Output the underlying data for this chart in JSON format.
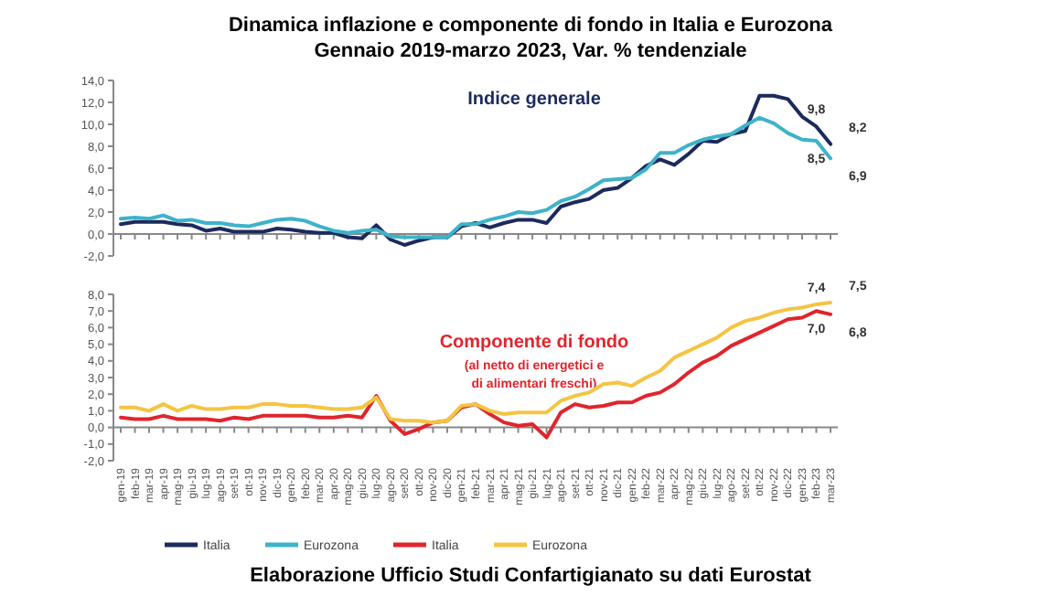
{
  "chart_data": [
    {
      "type": "line",
      "title": "Dinamica inflazione e componente di fondo in Italia e Eurozona",
      "subtitle": "Gennaio 2019-marzo 2023, Var. % tendenziale",
      "annotations": [
        "Indice generale"
      ],
      "categories": [
        null,
        null,
        null,
        null,
        null,
        null,
        null,
        null,
        null,
        null,
        null,
        null,
        null,
        null,
        null,
        null,
        null,
        null,
        null,
        null,
        null,
        null,
        null,
        null,
        null,
        null,
        null,
        null,
        null,
        null,
        null,
        null,
        null,
        null,
        null,
        null,
        null,
        null,
        null,
        null,
        null,
        null,
        null,
        null,
        null,
        null,
        null,
        null,
        null,
        null,
        null
      ],
      "ylim": [
        -2,
        14
      ],
      "yticks": [
        {
          "value": -2,
          "label": "-2,0"
        },
        {
          "value": 0,
          "label": "0,0"
        },
        {
          "value": 2,
          "label": "2,0"
        },
        {
          "value": 4,
          "label": "4,0"
        },
        {
          "value": 6,
          "label": "6,0"
        },
        {
          "value": 8,
          "label": "8,0"
        },
        {
          "value": 10,
          "label": "10,0"
        },
        {
          "value": 12,
          "label": "12,0"
        },
        {
          "value": 14,
          "label": "14,0"
        }
      ],
      "legend": "bottom",
      "marker": "none",
      "line_style": "solid",
      "series": [
        {
          "name": "Italia",
          "color": "#1c2a5c",
          "values": [
            0.9,
            1.1,
            1.1,
            1.1,
            0.9,
            0.8,
            0.3,
            0.5,
            0.2,
            0.2,
            0.2,
            0.5,
            0.4,
            0.2,
            0.1,
            0.1,
            -0.3,
            -0.4,
            0.8,
            -0.5,
            -1.0,
            -0.6,
            -0.3,
            -0.3,
            0.7,
            1.0,
            0.6,
            1.0,
            1.3,
            1.3,
            1.0,
            2.5,
            2.9,
            3.2,
            4.0,
            4.2,
            5.1,
            6.2,
            6.8,
            6.3,
            7.3,
            8.5,
            8.4,
            9.1,
            9.4,
            12.6,
            12.6,
            12.3,
            10.7,
            9.8,
            8.2
          ],
          "value_labels": [
            null,
            null,
            null,
            null,
            null,
            null,
            null,
            null,
            null,
            null,
            null,
            null,
            null,
            null,
            null,
            null,
            null,
            null,
            null,
            null,
            null,
            null,
            null,
            null,
            null,
            null,
            null,
            null,
            null,
            null,
            null,
            null,
            null,
            null,
            null,
            null,
            null,
            null,
            null,
            null,
            null,
            null,
            null,
            null,
            null,
            null,
            null,
            null,
            null,
            "9,8",
            "8,2"
          ]
        },
        {
          "name": "Eurozona",
          "color": "#3db3c9",
          "values": [
            1.4,
            1.5,
            1.4,
            1.7,
            1.2,
            1.3,
            1.0,
            1.0,
            0.8,
            0.7,
            1.0,
            1.3,
            1.4,
            1.2,
            0.7,
            0.3,
            0.1,
            0.3,
            0.4,
            -0.2,
            -0.3,
            -0.3,
            -0.3,
            -0.3,
            0.9,
            0.9,
            1.3,
            1.6,
            2.0,
            1.9,
            2.2,
            3.0,
            3.4,
            4.1,
            4.9,
            5.0,
            5.1,
            5.9,
            7.4,
            7.4,
            8.1,
            8.6,
            8.9,
            9.1,
            9.9,
            10.6,
            10.1,
            9.2,
            8.6,
            8.5,
            6.9
          ],
          "value_labels": [
            null,
            null,
            null,
            null,
            null,
            null,
            null,
            null,
            null,
            null,
            null,
            null,
            null,
            null,
            null,
            null,
            null,
            null,
            null,
            null,
            null,
            null,
            null,
            null,
            null,
            null,
            null,
            null,
            null,
            null,
            null,
            null,
            null,
            null,
            null,
            null,
            null,
            null,
            null,
            null,
            null,
            null,
            null,
            null,
            null,
            null,
            null,
            null,
            null,
            "8,5",
            "6,9"
          ]
        }
      ]
    },
    {
      "type": "line",
      "title": "Componente di fondo",
      "subtitle": "(al netto di energetici e di alimentari freschi)",
      "annotations": [
        "Elaborazione Ufficio Studi Confartigianato su dati Eurostat"
      ],
      "categories": [
        "gen-19",
        "feb-19",
        "mar-19",
        "apr-19",
        "mag-19",
        "giu-19",
        "lug-19",
        "ago-19",
        "set-19",
        "ott-19",
        "nov-19",
        "dic-19",
        "gen-20",
        "feb-20",
        "mar-20",
        "apr-20",
        "mag-20",
        "giu-20",
        "lug-20",
        "ago-20",
        "set-20",
        "ott-20",
        "nov-20",
        "dic-20",
        "gen-21",
        "feb-21",
        "mar-21",
        "apr-21",
        "mag-21",
        "giu-21",
        "lug-21",
        "ago-21",
        "set-21",
        "ott-21",
        "nov-21",
        "dic-21",
        "gen-22",
        "feb-22",
        "mar-22",
        "apr-22",
        "mag-22",
        "giu-22",
        "lug-22",
        "ago-22",
        "set-22",
        "ott-22",
        "nov-22",
        "dic-22",
        "gen-23",
        "feb-23",
        "mar-23"
      ],
      "ylim": [
        -2,
        8
      ],
      "yticks": [
        {
          "value": -2,
          "label": "-2,0"
        },
        {
          "value": -1,
          "label": "-1,0"
        },
        {
          "value": 0,
          "label": "0,0"
        },
        {
          "value": 1,
          "label": "1,0"
        },
        {
          "value": 2,
          "label": "2,0"
        },
        {
          "value": 3,
          "label": "3,0"
        },
        {
          "value": 4,
          "label": "4,0"
        },
        {
          "value": 5,
          "label": "5,0"
        },
        {
          "value": 6,
          "label": "6,0"
        },
        {
          "value": 7,
          "label": "7,0"
        },
        {
          "value": 8,
          "label": "8,0"
        }
      ],
      "legend": "bottom",
      "marker": "none",
      "line_style": "solid",
      "series": [
        {
          "name": "Italia",
          "color": "#e0252c",
          "values": [
            0.6,
            0.5,
            0.5,
            0.7,
            0.5,
            0.5,
            0.5,
            0.4,
            0.6,
            0.5,
            0.7,
            0.7,
            0.7,
            0.7,
            0.6,
            0.6,
            0.7,
            0.6,
            1.9,
            0.4,
            -0.4,
            -0.1,
            0.3,
            0.4,
            1.2,
            1.4,
            0.8,
            0.3,
            0.1,
            0.2,
            -0.6,
            0.9,
            1.4,
            1.2,
            1.3,
            1.5,
            1.5,
            1.9,
            2.1,
            2.6,
            3.3,
            3.9,
            4.3,
            4.9,
            5.3,
            5.7,
            6.1,
            6.5,
            6.6,
            7.0,
            6.8
          ],
          "value_labels": [
            null,
            null,
            null,
            null,
            null,
            null,
            null,
            null,
            null,
            null,
            null,
            null,
            null,
            null,
            null,
            null,
            null,
            null,
            null,
            null,
            null,
            null,
            null,
            null,
            null,
            null,
            null,
            null,
            null,
            null,
            null,
            null,
            null,
            null,
            null,
            null,
            null,
            null,
            null,
            null,
            null,
            null,
            null,
            null,
            null,
            null,
            null,
            null,
            null,
            "7,0",
            "6,8"
          ]
        },
        {
          "name": "Eurozona",
          "color": "#f4c443",
          "values": [
            1.2,
            1.2,
            1.0,
            1.4,
            1.0,
            1.3,
            1.1,
            1.1,
            1.2,
            1.2,
            1.4,
            1.4,
            1.3,
            1.3,
            1.2,
            1.1,
            1.1,
            1.2,
            1.8,
            0.5,
            0.4,
            0.4,
            0.3,
            0.4,
            1.3,
            1.4,
            1.0,
            0.8,
            0.9,
            0.9,
            0.9,
            1.6,
            1.9,
            2.1,
            2.6,
            2.7,
            2.5,
            3.0,
            3.4,
            4.2,
            4.6,
            5.0,
            5.4,
            6.0,
            6.4,
            6.6,
            6.9,
            7.1,
            7.2,
            7.4,
            7.5
          ],
          "value_labels": [
            null,
            null,
            null,
            null,
            null,
            null,
            null,
            null,
            null,
            null,
            null,
            null,
            null,
            null,
            null,
            null,
            null,
            null,
            null,
            null,
            null,
            null,
            null,
            null,
            null,
            null,
            null,
            null,
            null,
            null,
            null,
            null,
            null,
            null,
            null,
            null,
            null,
            null,
            null,
            null,
            null,
            null,
            null,
            null,
            null,
            null,
            null,
            null,
            null,
            "7,4",
            "7,5"
          ]
        }
      ]
    }
  ]
}
